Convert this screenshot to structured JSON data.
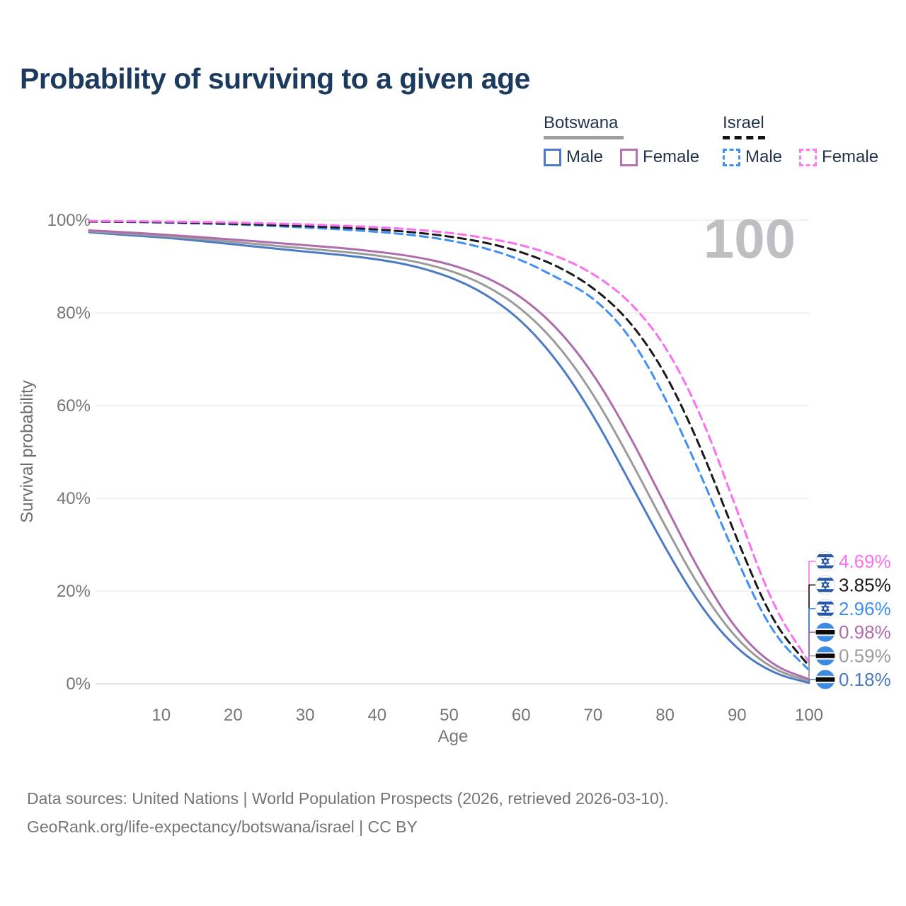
{
  "title": "Probability of surviving to a given age",
  "watermark": "100",
  "legend": {
    "groups": [
      {
        "name": "Botswana",
        "line_style": "solid",
        "underline_color": "#9E9E9E",
        "items": [
          {
            "label": "Male",
            "color": "#4C7AC4"
          },
          {
            "label": "Female",
            "color": "#B573B2"
          }
        ]
      },
      {
        "name": "Israel",
        "line_style": "dashed",
        "underline_color": "#141414",
        "items": [
          {
            "label": "Male",
            "color": "#3F8FF5"
          },
          {
            "label": "Female",
            "color": "#FC7CF2"
          }
        ]
      }
    ]
  },
  "chart_data": {
    "type": "line",
    "title": "Probability of surviving to a given age",
    "xlabel": "Age",
    "ylabel": "Survival probability",
    "xlim": [
      0,
      100
    ],
    "ylim": [
      0,
      100
    ],
    "grid": "horizontal",
    "xticks": [
      10,
      20,
      30,
      40,
      50,
      60,
      70,
      80,
      90,
      100
    ],
    "yticks": [
      {
        "value": 0,
        "label": "0%"
      },
      {
        "value": 20,
        "label": "20%"
      },
      {
        "value": 40,
        "label": "40%"
      },
      {
        "value": 60,
        "label": "60%"
      },
      {
        "value": 80,
        "label": "80%"
      },
      {
        "value": 100,
        "label": "100%"
      }
    ],
    "x": [
      0,
      5,
      10,
      15,
      20,
      25,
      30,
      35,
      40,
      45,
      50,
      55,
      60,
      65,
      70,
      75,
      80,
      85,
      90,
      95,
      100
    ],
    "series": [
      {
        "name": "Botswana Male",
        "country": "Botswana",
        "sex": "Male",
        "flag": "botswana",
        "color": "#4C7AC4",
        "dash": false,
        "end_label": "0.18%",
        "values": [
          97.4,
          96.8,
          96.3,
          95.6,
          94.8,
          94.0,
          93.2,
          92.5,
          91.6,
          90.2,
          87.9,
          84.2,
          78.5,
          69.9,
          58.1,
          43.8,
          29.3,
          16.4,
          7.3,
          2.2,
          0.18
        ]
      },
      {
        "name": "Botswana Both sexes",
        "country": "Botswana",
        "sex": "Both sexes",
        "flag": "botswana",
        "color": "#9B9B9B",
        "dash": false,
        "end_label": "0.59%",
        "values": [
          97.6,
          97.1,
          96.6,
          96.0,
          95.3,
          94.6,
          93.9,
          93.2,
          92.4,
          91.2,
          89.3,
          86.1,
          81.1,
          73.5,
          62.7,
          48.9,
          34.0,
          20.0,
          9.3,
          3.0,
          0.59
        ]
      },
      {
        "name": "Botswana Female",
        "country": "Botswana",
        "sex": "Female",
        "flag": "botswana",
        "color": "#AE6CAD",
        "dash": false,
        "end_label": "0.98%",
        "values": [
          97.8,
          97.4,
          96.9,
          96.4,
          95.8,
          95.2,
          94.6,
          94.0,
          93.2,
          92.2,
          90.6,
          87.9,
          83.6,
          76.9,
          67.1,
          53.9,
          38.6,
          23.5,
          11.2,
          3.8,
          0.98
        ]
      },
      {
        "name": "Israel Male",
        "country": "Israel",
        "sex": "Male",
        "flag": "israel",
        "color": "#3F8FF5",
        "dash": true,
        "end_label": "2.96%",
        "values": [
          99.7,
          99.6,
          99.5,
          99.3,
          99.1,
          98.8,
          98.4,
          98.0,
          97.5,
          96.8,
          95.7,
          94.0,
          91.5,
          87.6,
          83.5,
          75.5,
          62.0,
          45.0,
          26.5,
          10.5,
          2.96
        ]
      },
      {
        "name": "Israel Both sexes",
        "country": "Israel",
        "sex": "Both sexes",
        "flag": "israel",
        "color": "#1A1A1A",
        "dash": true,
        "end_label": "3.85%",
        "values": [
          99.7,
          99.65,
          99.55,
          99.4,
          99.2,
          99.0,
          98.7,
          98.4,
          98.0,
          97.4,
          96.5,
          95.2,
          93.2,
          90.2,
          85.6,
          78.6,
          67.4,
          51.0,
          31.0,
          13.0,
          3.85
        ]
      },
      {
        "name": "Israel Female",
        "country": "Israel",
        "sex": "Female",
        "flag": "israel",
        "color": "#FB70F0",
        "dash": true,
        "end_label": "4.69%",
        "values": [
          99.8,
          99.75,
          99.7,
          99.6,
          99.5,
          99.3,
          99.1,
          98.8,
          98.5,
          98.0,
          97.3,
          96.2,
          94.7,
          92.3,
          88.6,
          82.8,
          73.3,
          58.2,
          37.4,
          16.5,
          4.69
        ]
      }
    ],
    "annotations": {
      "watermark": "100"
    },
    "colors": {
      "grid": "#E8E8E8",
      "zero_line": "#CFCFCF",
      "axis_text": "#767676",
      "watermark": "#BFBFC3",
      "israel_flag_blue": "#2857A8",
      "botswana_flag_blue": "#3D8BE0"
    }
  },
  "footer": {
    "line1": "Data sources: United Nations | World Population Prospects (2026, retrieved 2026-03-10).",
    "line2": "GeoRank.org/life-expectancy/botswana/israel | CC BY"
  }
}
